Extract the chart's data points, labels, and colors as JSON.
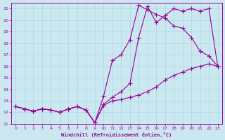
{
  "xlabel": "Windchill (Refroidissement éolien,°C)",
  "bg_color": "#cbe8f0",
  "line_color": "#990099",
  "grid_color": "#a8d8e0",
  "xlim": [
    -0.5,
    23.5
  ],
  "ylim": [
    11,
    21.5
  ],
  "yticks": [
    11,
    12,
    13,
    14,
    15,
    16,
    17,
    18,
    19,
    20,
    21
  ],
  "xticks": [
    0,
    1,
    2,
    3,
    4,
    5,
    6,
    7,
    8,
    9,
    10,
    11,
    12,
    13,
    14,
    15,
    16,
    17,
    18,
    19,
    20,
    21,
    22,
    23
  ],
  "line1_x": [
    0,
    1,
    2,
    3,
    4,
    5,
    6,
    7,
    8,
    9,
    10,
    11,
    12,
    13,
    14,
    15,
    16,
    17,
    18,
    19,
    20,
    21,
    22,
    23
  ],
  "line1_y": [
    12.5,
    12.3,
    12.1,
    12.3,
    12.2,
    12.0,
    12.3,
    12.5,
    12.2,
    11.1,
    12.6,
    13.0,
    13.1,
    13.3,
    13.5,
    13.8,
    14.2,
    14.8,
    15.2,
    15.5,
    15.8,
    16.0,
    16.2,
    16.0
  ],
  "line2_x": [
    0,
    1,
    2,
    3,
    4,
    5,
    6,
    7,
    8,
    9,
    10,
    11,
    12,
    13,
    14,
    15,
    16,
    17,
    18,
    19,
    20,
    21,
    22,
    23
  ],
  "line2_y": [
    12.5,
    12.3,
    12.1,
    12.3,
    12.2,
    12.0,
    12.3,
    12.5,
    12.2,
    11.1,
    13.4,
    16.5,
    17.0,
    18.3,
    21.3,
    20.9,
    20.5,
    20.2,
    19.5,
    19.3,
    18.5,
    17.3,
    16.9,
    16.0
  ],
  "line3_x": [
    0,
    1,
    2,
    3,
    4,
    5,
    6,
    7,
    8,
    9,
    10,
    11,
    12,
    13,
    14,
    15,
    16,
    17,
    18,
    19,
    20,
    21,
    22,
    23
  ],
  "line3_y": [
    12.5,
    12.3,
    12.1,
    12.3,
    12.2,
    12.0,
    12.3,
    12.5,
    12.2,
    11.1,
    12.7,
    13.3,
    13.8,
    14.5,
    18.5,
    21.2,
    19.8,
    20.4,
    21.0,
    20.8,
    21.0,
    20.8,
    21.0,
    16.0
  ]
}
